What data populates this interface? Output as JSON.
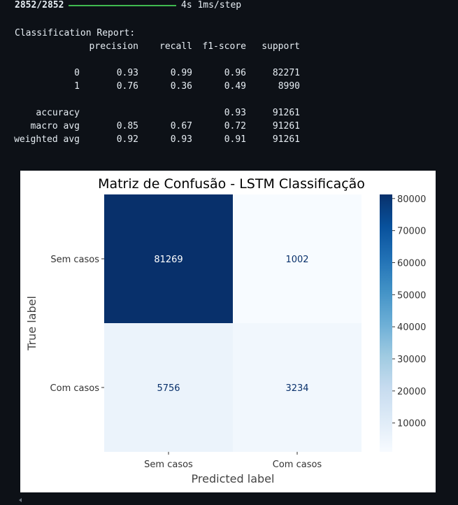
{
  "progress": {
    "steps": "2852/2852",
    "time": "4s",
    "per_step": "1ms/step",
    "fraction": 1.0
  },
  "report": {
    "title": "Classification Report:",
    "headers": [
      "precision",
      "recall",
      "f1-score",
      "support"
    ],
    "rows": [
      {
        "label": "0",
        "precision": "0.93",
        "recall": "0.99",
        "f1": "0.96",
        "support": "82271"
      },
      {
        "label": "1",
        "precision": "0.76",
        "recall": "0.36",
        "f1": "0.49",
        "support": "8990"
      }
    ],
    "summary": [
      {
        "label": "accuracy",
        "precision": "",
        "recall": "",
        "f1": "0.93",
        "support": "91261"
      },
      {
        "label": "macro avg",
        "precision": "0.85",
        "recall": "0.67",
        "f1": "0.72",
        "support": "91261"
      },
      {
        "label": "weighted avg",
        "precision": "0.92",
        "recall": "0.93",
        "f1": "0.91",
        "support": "91261"
      }
    ]
  },
  "chart_data": {
    "type": "heatmap",
    "title": "Matriz de Confusão - LSTM Classificação",
    "xlabel": "Predicted label",
    "ylabel": "True label",
    "x_categories": [
      "Sem casos",
      "Com casos"
    ],
    "y_categories": [
      "Sem casos",
      "Com casos"
    ],
    "matrix": [
      [
        81269,
        1002
      ],
      [
        5756,
        3234
      ]
    ],
    "colormap": "Blues",
    "colorbar": {
      "min": 1002,
      "max": 81269,
      "ticks": [
        10000,
        20000,
        30000,
        40000,
        50000,
        60000,
        70000,
        80000
      ]
    }
  },
  "colors": {
    "background": "#0d1117",
    "text": "#e6edf3",
    "progress": "#3fb950"
  }
}
